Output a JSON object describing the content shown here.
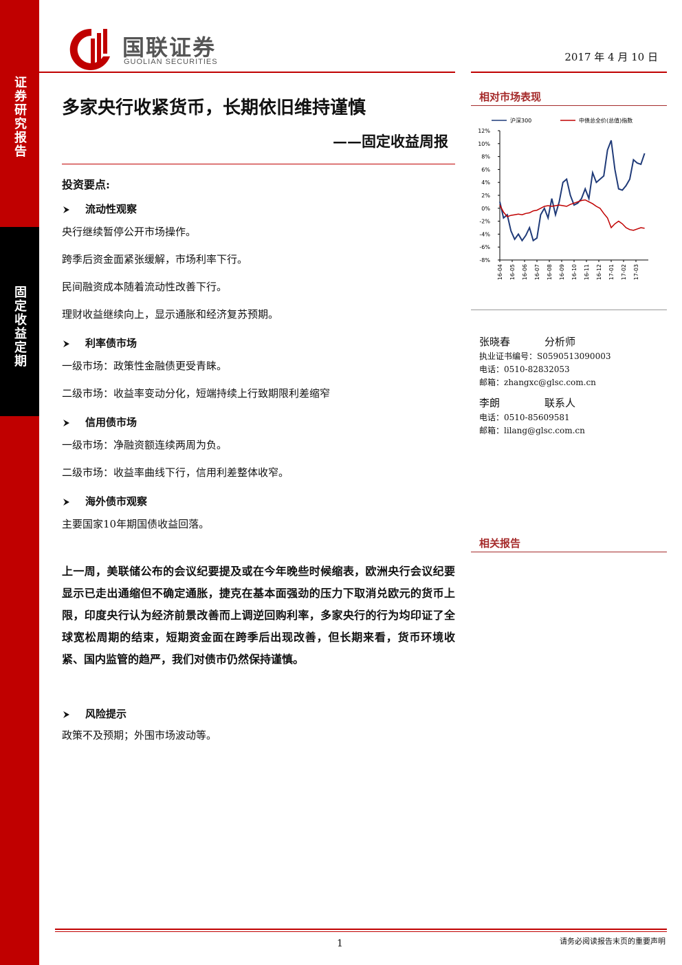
{
  "header": {
    "logo": "国联证券",
    "logo_en": "GUOLIAN SECURITIES",
    "date": "2017 年 4 月 10 日"
  },
  "sidebar": {
    "top": "证券研究报告",
    "bottom": "固定收益定期"
  },
  "title": "多家央行收紧货币，长期依旧维持谨慎",
  "subtitle": "——固定收益周报",
  "key_points": {
    "heading": "投资要点:",
    "sections": [
      {
        "heading": "流动性观察",
        "items": [
          "央行继续暂停公开市场操作。",
          "跨季后资金面紧张缓解，市场利率下行。",
          "民间融资成本随着流动性改善下行。",
          "理财收益继续向上，显示通胀和经济复苏预期。"
        ]
      },
      {
        "heading": "利率债市场",
        "items": [
          "一级市场：政策性金融债更受青睐。",
          "二级市场：收益率变动分化，短端持续上行致期限利差缩窄"
        ]
      },
      {
        "heading": "信用债市场",
        "items": [
          "一级市场：净融资额连续两周为负。",
          "二级市场：收益率曲线下行，信用利差整体收窄。"
        ]
      },
      {
        "heading": "海外债市观察",
        "items": [
          "主要国家10年期国债收益回落。"
        ]
      }
    ]
  },
  "summary": "上一周，美联储公布的会议纪要提及或在今年晚些时候缩表，欧洲央行会议纪要显示已走出通缩但不确定通胀，捷克在基本面强劲的压力下取消兑欧元的货币上限，印度央行认为经济前景改善而上调逆回购利率，多家央行的行为均印证了全球宽松周期的结束，短期资金面在跨季后出现改善，但长期来看，货币环境收紧、国内监管的趋严，我们对债市仍然保持谨慎。",
  "risk": {
    "heading": "风险提示",
    "text": "政策不及预期；外围市场波动等。"
  },
  "market": {
    "heading": "相对市场表现"
  },
  "chart_data": {
    "type": "line",
    "x": [
      0,
      0.3,
      0.6,
      0.9,
      1.2,
      1.5,
      1.8,
      2.1,
      2.4,
      2.7,
      3,
      3.3,
      3.6,
      3.9,
      4.2,
      4.5,
      4.8,
      5.1,
      5.4,
      5.7,
      6,
      6.3,
      6.6,
      6.9,
      7.2,
      7.5,
      7.8,
      8.1,
      8.4,
      8.7,
      9,
      9.3,
      9.6,
      9.9,
      10.2,
      10.5,
      10.8,
      11.1,
      11.4,
      11.7
    ],
    "series": [
      {
        "name": "沪深300",
        "color": "#1f3a78",
        "values": [
          1.0,
          -1.5,
          -1.0,
          -3.5,
          -4.8,
          -4.0,
          -5.0,
          -4.2,
          -3.0,
          -5.0,
          -4.6,
          -1.0,
          0.0,
          -1.5,
          1.5,
          -1.0,
          1.0,
          4.0,
          4.5,
          2.0,
          0.5,
          0.8,
          1.5,
          3.0,
          1.5,
          5.5,
          4.0,
          4.5,
          5.0,
          9.0,
          10.5,
          6.0,
          3.0,
          2.8,
          3.5,
          4.5,
          7.5,
          7.0,
          6.8,
          8.5
        ]
      },
      {
        "name": "中债总全价(总值)指数",
        "color": "#c00000",
        "values": [
          0.5,
          -0.6,
          -1.3,
          -1.1,
          -1.0,
          -0.9,
          -1.0,
          -0.8,
          -0.7,
          -0.4,
          -0.3,
          0.0,
          0.3,
          0.4,
          0.3,
          0.4,
          0.5,
          0.4,
          0.3,
          0.6,
          0.8,
          1.0,
          1.2,
          1.3,
          1.0,
          0.7,
          0.3,
          0.0,
          -0.8,
          -1.5,
          -3.0,
          -2.4,
          -2.0,
          -2.4,
          -3.0,
          -3.3,
          -3.4,
          -3.2,
          -3.0,
          -3.1
        ]
      }
    ],
    "xlim": [
      0,
      12
    ],
    "xticks": [
      {
        "value": 0,
        "label": "16-04"
      },
      {
        "value": 1,
        "label": "16-05"
      },
      {
        "value": 2,
        "label": "16-06"
      },
      {
        "value": 3,
        "label": "16-07"
      },
      {
        "value": 4,
        "label": "16-08"
      },
      {
        "value": 5,
        "label": "16-09"
      },
      {
        "value": 6,
        "label": "16-10"
      },
      {
        "value": 7,
        "label": "16-11"
      },
      {
        "value": 8,
        "label": "16-12"
      },
      {
        "value": 9,
        "label": "17-01"
      },
      {
        "value": 10,
        "label": "17-02"
      },
      {
        "value": 11,
        "label": "17-03"
      }
    ],
    "ylim": [
      -8,
      12
    ],
    "yticks": [
      {
        "value": -8,
        "label": "-8%"
      },
      {
        "value": -6,
        "label": "-6%"
      },
      {
        "value": -4,
        "label": "-4%"
      },
      {
        "value": -2,
        "label": "-2%"
      },
      {
        "value": 0,
        "label": "0%"
      },
      {
        "value": 2,
        "label": "2%"
      },
      {
        "value": 4,
        "label": "4%"
      },
      {
        "value": 6,
        "label": "6%"
      },
      {
        "value": 8,
        "label": "8%"
      },
      {
        "value": 10,
        "label": "10%"
      },
      {
        "value": 12,
        "label": "12%"
      }
    ],
    "grid": false
  },
  "contacts": [
    {
      "name": "张晓春",
      "role": "分析师",
      "lines": [
        "执业证书编号：S0590513090003",
        "电话：0510-82832053",
        "邮箱：zhangxc@glsc.com.cn"
      ]
    },
    {
      "name": "李朗",
      "role": "联系人",
      "lines": [
        "电话：0510-85609581",
        "邮箱：lilang@glsc.com.cn"
      ]
    }
  ],
  "related": {
    "heading": "相关报告"
  },
  "footer": {
    "page": "1",
    "notice": "请务必阅读报告末页的重要声明"
  }
}
